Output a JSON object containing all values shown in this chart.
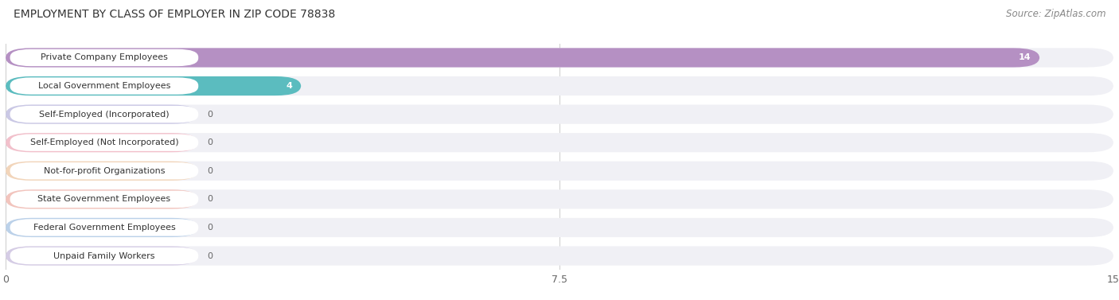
{
  "title": "EMPLOYMENT BY CLASS OF EMPLOYER IN ZIP CODE 78838",
  "source": "Source: ZipAtlas.com",
  "categories": [
    "Private Company Employees",
    "Local Government Employees",
    "Self-Employed (Incorporated)",
    "Self-Employed (Not Incorporated)",
    "Not-for-profit Organizations",
    "State Government Employees",
    "Federal Government Employees",
    "Unpaid Family Workers"
  ],
  "values": [
    14,
    4,
    0,
    0,
    0,
    0,
    0,
    0
  ],
  "bar_colors": [
    "#b590c3",
    "#5bbcbf",
    "#aba8d8",
    "#f49aaa",
    "#f5c08a",
    "#f4a090",
    "#90b8e0",
    "#c0b0d8"
  ],
  "label_bg_colors": [
    "#e8d8f5",
    "#c8ecec",
    "#d8d5f0",
    "#fdd5de",
    "#fde0c0",
    "#fdd5d0",
    "#cce0f5",
    "#ddd5f0"
  ],
  "xlim": [
    0,
    15
  ],
  "xticks": [
    0,
    7.5,
    15
  ],
  "background_color": "#ffffff",
  "row_bg_color": "#f0f0f5",
  "title_fontsize": 10,
  "source_fontsize": 8.5,
  "label_fontsize": 8,
  "value_fontsize": 8
}
